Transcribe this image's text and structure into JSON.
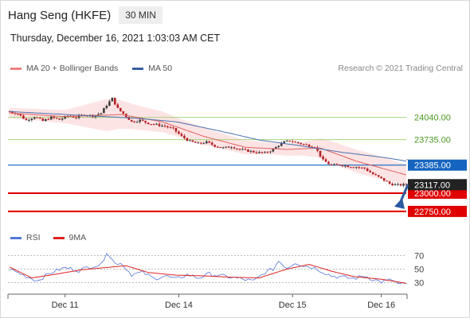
{
  "header": {
    "title": "Hang Seng (HKFE)",
    "timeframe": "30 MIN"
  },
  "datetime": "Thursday, December 16, 2021 1:03:03 AM CET",
  "legend": [
    {
      "label": "MA 20 + Bollinger Bands",
      "color": "#f08080"
    },
    {
      "label": "MA 50",
      "color": "#3a5fa0"
    }
  ],
  "credit": "Research © 2021 Trading Central",
  "colors": {
    "bull": "#3c3c3c",
    "bear": "#b52025",
    "ma20": "#e06060",
    "ma50": "#4a6fb0",
    "band": "#fde4e4",
    "resistance": "#a7d47e",
    "support": "#e00000",
    "pivot": "#1565c0",
    "rsi": "#5577dd",
    "rsi_ma": "#dd2222",
    "arrow": "#2b5aa0"
  },
  "chart_data": {
    "type": "candlestick",
    "xlabels": [
      "Dec 11",
      "Dec 14",
      "Dec 15",
      "Dec 16"
    ],
    "ylim": [
      22640,
      24560
    ],
    "levels": [
      {
        "value": 24040,
        "label": "24040.00",
        "kind": "resistance"
      },
      {
        "value": 23735,
        "label": "23735.00",
        "kind": "resistance"
      },
      {
        "value": 23385,
        "label": "23385.00",
        "kind": "pivot"
      },
      {
        "value": 23000,
        "label": "23000.00",
        "kind": "support"
      },
      {
        "value": 22750,
        "label": "22750.00",
        "kind": "support"
      }
    ],
    "last_price": {
      "value": 23117,
      "label": "23117.00"
    },
    "forecast_target": 22750,
    "price_anchors": [
      [
        0,
        24120
      ],
      [
        3,
        24090
      ],
      [
        6,
        24000
      ],
      [
        9,
        24050
      ],
      [
        12,
        23990
      ],
      [
        15,
        24040
      ],
      [
        18,
        24010
      ],
      [
        21,
        24060
      ],
      [
        24,
        24040
      ],
      [
        27,
        24080
      ],
      [
        30,
        24060
      ],
      [
        33,
        24100
      ],
      [
        35,
        24210
      ],
      [
        37,
        24300
      ],
      [
        39,
        24160
      ],
      [
        41,
        24090
      ],
      [
        44,
        23980
      ],
      [
        47,
        24000
      ],
      [
        50,
        23960
      ],
      [
        53,
        23940
      ],
      [
        56,
        23920
      ],
      [
        59,
        23880
      ],
      [
        62,
        23780
      ],
      [
        65,
        23710
      ],
      [
        68,
        23680
      ],
      [
        71,
        23700
      ],
      [
        74,
        23650
      ],
      [
        77,
        23620
      ],
      [
        80,
        23640
      ],
      [
        83,
        23600
      ],
      [
        86,
        23580
      ],
      [
        89,
        23560
      ],
      [
        92,
        23550
      ],
      [
        95,
        23600
      ],
      [
        97,
        23660
      ],
      [
        99,
        23700
      ],
      [
        101,
        23720
      ],
      [
        104,
        23690
      ],
      [
        107,
        23660
      ],
      [
        110,
        23640
      ],
      [
        113,
        23450
      ],
      [
        116,
        23380
      ],
      [
        119,
        23390
      ],
      [
        122,
        23370
      ],
      [
        125,
        23360
      ],
      [
        128,
        23340
      ],
      [
        131,
        23260
      ],
      [
        134,
        23200
      ],
      [
        137,
        23130
      ],
      [
        140,
        23110
      ],
      [
        143,
        23117
      ]
    ],
    "ma20_anchors": [
      [
        0,
        24100
      ],
      [
        20,
        24050
      ],
      [
        40,
        24080
      ],
      [
        55,
        23980
      ],
      [
        70,
        23780
      ],
      [
        85,
        23630
      ],
      [
        100,
        23600
      ],
      [
        112,
        23620
      ],
      [
        125,
        23440
      ],
      [
        143,
        23250
      ]
    ],
    "ma50_anchors": [
      [
        0,
        24120
      ],
      [
        25,
        24070
      ],
      [
        45,
        24030
      ],
      [
        60,
        23980
      ],
      [
        75,
        23860
      ],
      [
        90,
        23730
      ],
      [
        105,
        23650
      ],
      [
        120,
        23560
      ],
      [
        135,
        23490
      ],
      [
        143,
        23440
      ]
    ],
    "band_width_anchors": [
      [
        0,
        70
      ],
      [
        20,
        90
      ],
      [
        35,
        220
      ],
      [
        45,
        170
      ],
      [
        60,
        130
      ],
      [
        75,
        110
      ],
      [
        95,
        80
      ],
      [
        105,
        90
      ],
      [
        115,
        150
      ],
      [
        130,
        160
      ],
      [
        143,
        140
      ]
    ],
    "rsi": {
      "label": "RSI",
      "ma_label": "9MA",
      "ticks": [
        70,
        50,
        30
      ],
      "ylim": [
        20,
        80
      ],
      "rsi_anchors": [
        [
          0,
          50
        ],
        [
          5,
          41
        ],
        [
          10,
          33
        ],
        [
          15,
          45
        ],
        [
          20,
          52
        ],
        [
          25,
          48
        ],
        [
          30,
          55
        ],
        [
          33,
          56
        ],
        [
          35,
          76
        ],
        [
          38,
          58
        ],
        [
          40,
          60
        ],
        [
          44,
          42
        ],
        [
          48,
          45
        ],
        [
          52,
          36
        ],
        [
          56,
          40
        ],
        [
          60,
          35
        ],
        [
          64,
          42
        ],
        [
          68,
          37
        ],
        [
          72,
          43
        ],
        [
          76,
          40
        ],
        [
          80,
          38
        ],
        [
          84,
          35
        ],
        [
          88,
          32
        ],
        [
          92,
          45
        ],
        [
          95,
          50
        ],
        [
          97,
          62
        ],
        [
          100,
          52
        ],
        [
          103,
          60
        ],
        [
          106,
          55
        ],
        [
          110,
          52
        ],
        [
          113,
          46
        ],
        [
          116,
          40
        ],
        [
          120,
          38
        ],
        [
          124,
          36
        ],
        [
          128,
          40
        ],
        [
          131,
          35
        ],
        [
          134,
          31
        ],
        [
          138,
          34
        ],
        [
          140,
          28
        ],
        [
          143,
          27
        ]
      ],
      "ma_anchors": [
        [
          0,
          53
        ],
        [
          8,
          37
        ],
        [
          16,
          42
        ],
        [
          26,
          49
        ],
        [
          34,
          52
        ],
        [
          42,
          55
        ],
        [
          50,
          45
        ],
        [
          60,
          41
        ],
        [
          70,
          40
        ],
        [
          80,
          38
        ],
        [
          90,
          37
        ],
        [
          100,
          50
        ],
        [
          108,
          57
        ],
        [
          116,
          47
        ],
        [
          124,
          39
        ],
        [
          134,
          35
        ],
        [
          143,
          29
        ]
      ]
    }
  }
}
